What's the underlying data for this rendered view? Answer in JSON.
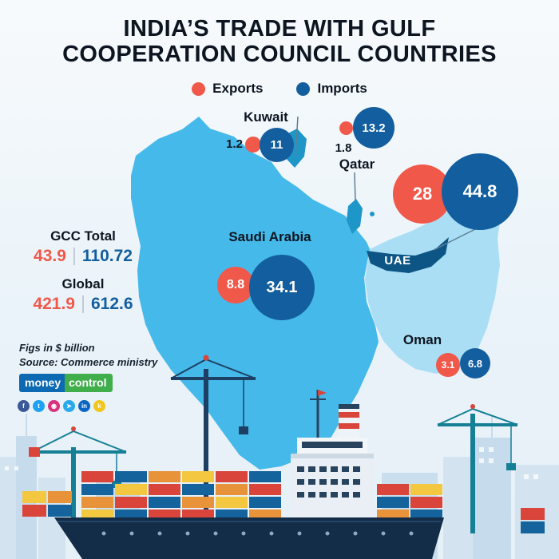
{
  "title": {
    "line1": "INDIA’S TRADE WITH GULF",
    "line2": "COOPERATION COUNCIL COUNTRIES"
  },
  "legend": {
    "exports_label": "Exports",
    "imports_label": "Imports"
  },
  "colors": {
    "exports": "#f0584a",
    "imports": "#135e9e",
    "map_main": "#45b9e9",
    "map_light": "#a9def5",
    "map_small_regions": "#1e96c8",
    "uae_band": "#0d5584"
  },
  "chart_data": {
    "type": "bubble",
    "title": "India's trade with Gulf Cooperation Council countries",
    "unit": "$ billion",
    "legend_entries": [
      "Exports",
      "Imports"
    ],
    "categories": [
      "Kuwait",
      "Qatar",
      "UAE",
      "Saudi Arabia",
      "Oman"
    ],
    "series": [
      {
        "name": "Exports",
        "values": [
          1.2,
          1.8,
          28,
          8.8,
          3.1
        ]
      },
      {
        "name": "Imports",
        "values": [
          11,
          13.2,
          44.8,
          34.1,
          6.8
        ]
      }
    ],
    "totals": [
      {
        "label": "GCC Total",
        "exports": 43.9,
        "imports": 110.72
      },
      {
        "label": "Global",
        "exports": 421.9,
        "imports": 612.6
      }
    ]
  },
  "countries": {
    "kuwait": {
      "name": "Kuwait",
      "exports": "1.2",
      "imports": "11"
    },
    "qatar": {
      "name": "Qatar",
      "exports": "1.8",
      "imports": "13.2"
    },
    "uae": {
      "name": "UAE",
      "exports": "28",
      "imports": "44.8"
    },
    "saudi": {
      "name": "Saudi Arabia",
      "exports": "8.8",
      "imports": "34.1"
    },
    "oman": {
      "name": "Oman",
      "exports": "3.1",
      "imports": "6.8"
    }
  },
  "totals": {
    "gcc": {
      "label": "GCC Total",
      "exports": "43.9",
      "imports": "110.72"
    },
    "global": {
      "label": "Global",
      "exports": "421.9",
      "imports": "612.6"
    }
  },
  "footnotes": {
    "figs": "Figs in $ billion",
    "source": "Source: Commerce ministry"
  },
  "brand": {
    "money": "money",
    "control": "control"
  },
  "social": [
    {
      "name": "facebook",
      "glyph": "f",
      "color": "#3b5998"
    },
    {
      "name": "twitter",
      "glyph": "t",
      "color": "#1da1f2"
    },
    {
      "name": "instagram",
      "glyph": "◉",
      "color": "#d6327d"
    },
    {
      "name": "telegram",
      "glyph": "➤",
      "color": "#29a9eb"
    },
    {
      "name": "linkedin",
      "glyph": "in",
      "color": "#0a66c2"
    },
    {
      "name": "koo",
      "glyph": "k",
      "color": "#f2c71b"
    }
  ]
}
